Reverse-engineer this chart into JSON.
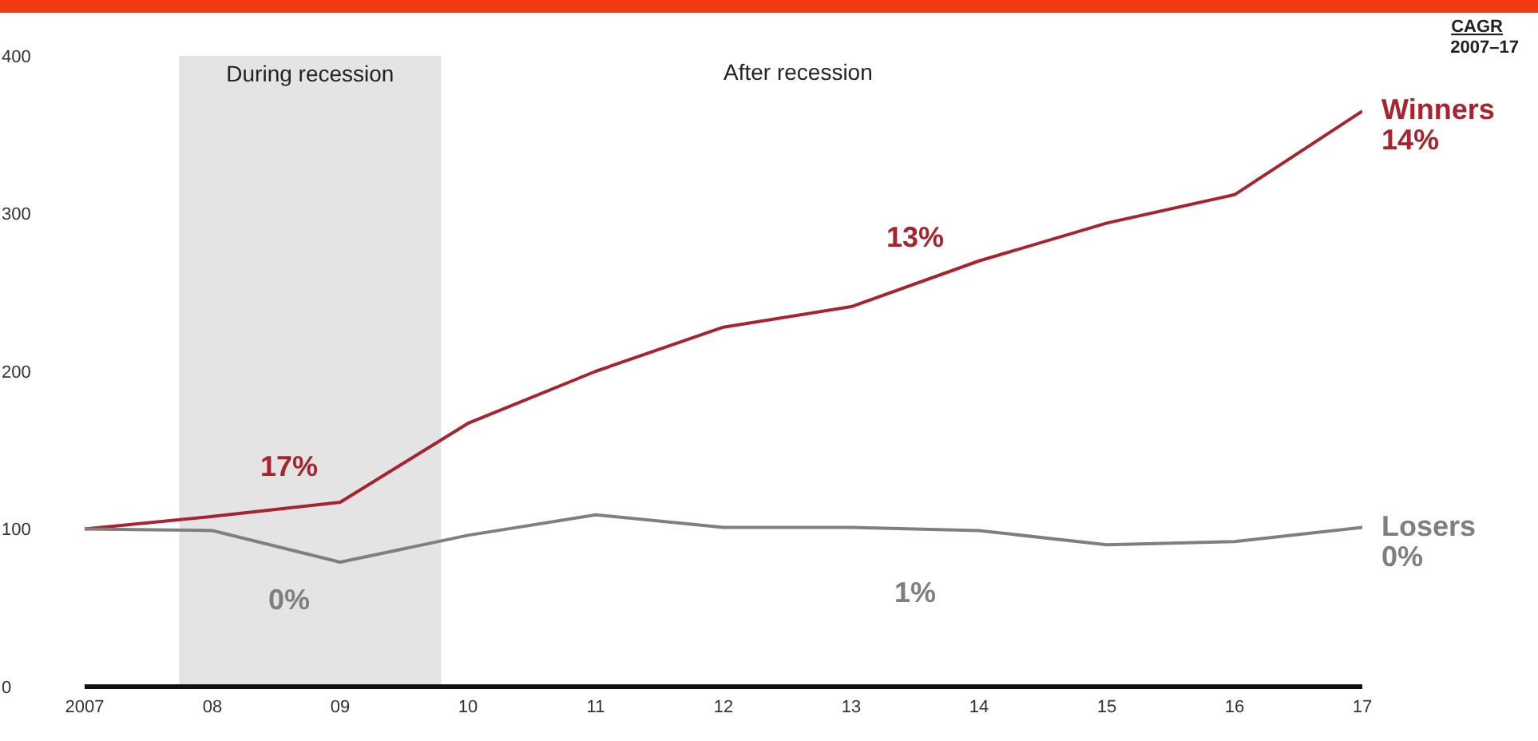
{
  "chart_data": {
    "type": "line",
    "x": [
      2007,
      2008,
      2009,
      2010,
      2011,
      2012,
      2013,
      2014,
      2015,
      2016,
      2017
    ],
    "series": [
      {
        "name": "Winners",
        "color": "#a8232e",
        "values": [
          100,
          108,
          117,
          167,
          200,
          228,
          241,
          270,
          294,
          312,
          365
        ]
      },
      {
        "name": "Losers",
        "color": "#7f7f7f",
        "values": [
          100,
          99,
          79,
          96,
          109,
          101,
          101,
          99,
          90,
          92,
          101
        ]
      }
    ],
    "xlim": [
      2007,
      2017
    ],
    "xticks": [
      2007,
      {
        "value": 2008,
        "label": "08"
      },
      {
        "value": 2009,
        "label": "09"
      },
      {
        "value": 2010,
        "label": "10"
      },
      {
        "value": 2011,
        "label": "11"
      },
      {
        "value": 2012,
        "label": "12"
      },
      {
        "value": 2013,
        "label": "13"
      },
      {
        "value": 2014,
        "label": "14"
      },
      {
        "value": 2015,
        "label": "15"
      },
      {
        "value": 2016,
        "label": "16"
      },
      {
        "value": 2017,
        "label": "17"
      }
    ],
    "ylim": [
      0,
      400
    ],
    "yticks": [
      0,
      100,
      200,
      300,
      400
    ],
    "bands": [
      {
        "axis": "x",
        "from": 2007.74,
        "to": 2009.79,
        "label": "During recession",
        "color": "#e4e4e4"
      }
    ],
    "annotations": [
      "After recession",
      "CAGR",
      "2007–17",
      "17%",
      "0%",
      "13%",
      "1%",
      {
        "text": "14%",
        "x": 2017,
        "y": 365
      },
      {
        "text": "0%",
        "x": 2017,
        "y": 101
      }
    ],
    "grid": false,
    "marker": "none",
    "line_style": "solid"
  }
}
